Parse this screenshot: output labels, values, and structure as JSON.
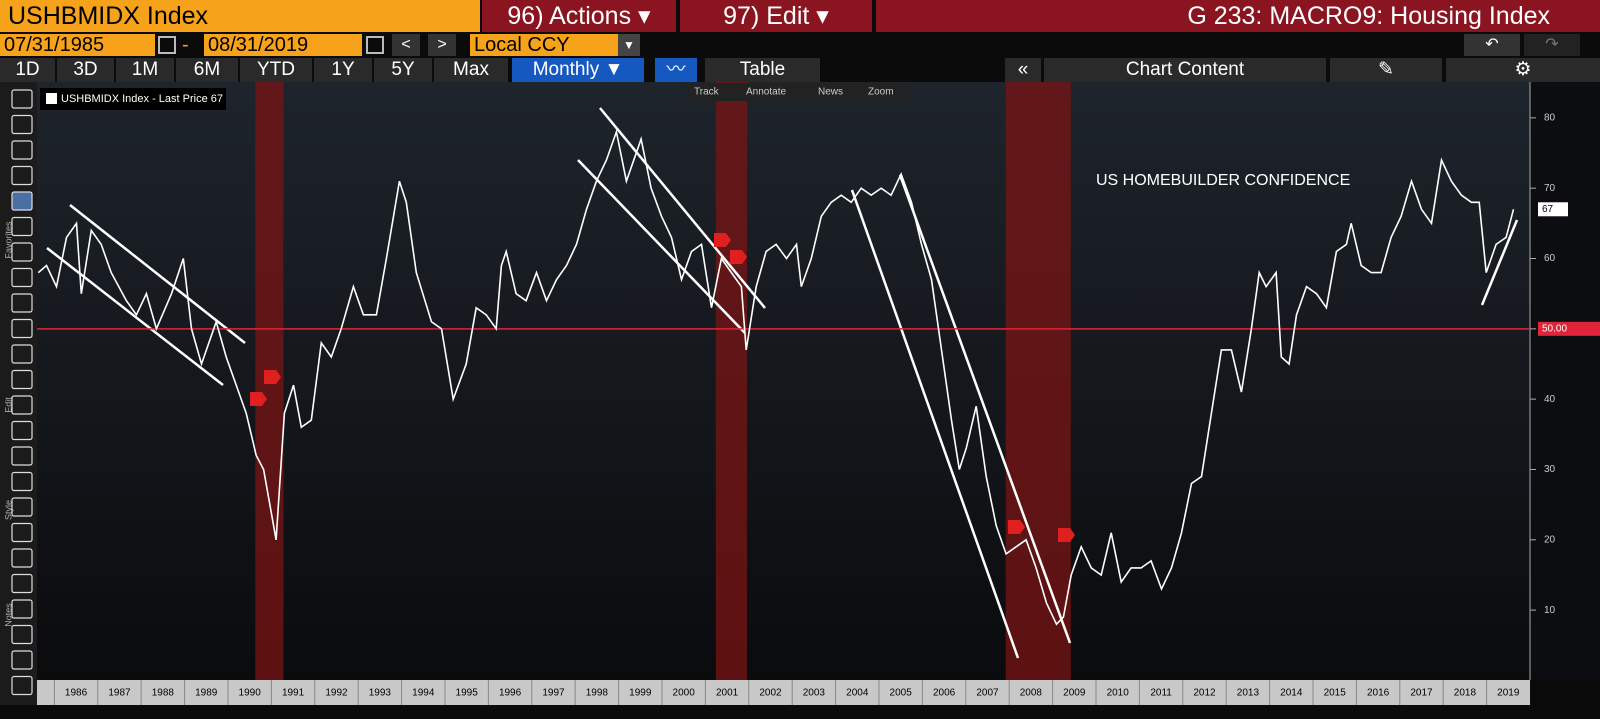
{
  "header": {
    "ticker": "USHBMIDX Index",
    "actions": "96) Actions",
    "edit": "97) Edit",
    "page_title": "G 233: MACRO9: Housing Index"
  },
  "controls": {
    "start_date": "07/31/1985",
    "end_date": "08/31/2019",
    "currency": "Local CCY",
    "periods": [
      "1D",
      "3D",
      "1M",
      "6M",
      "YTD",
      "1Y",
      "5Y",
      "Max"
    ],
    "frequency": "Monthly",
    "table": "Table",
    "chart_content": "Chart Content"
  },
  "chart_tools": [
    "Track",
    "Annotate",
    "News",
    "Zoom"
  ],
  "side_labels": [
    "Favorites",
    "Edit",
    "Style",
    "Notes"
  ],
  "chart_data": {
    "type": "line",
    "annotation": "US HOMEBUILDER CONFIDENCE",
    "x": [
      1985.63,
      1985.82,
      1986.05,
      1986.28,
      1986.51,
      1986.62,
      1986.85,
      1987.08,
      1987.31,
      1987.66,
      1987.89,
      1988.12,
      1988.35,
      1988.7,
      1988.97,
      1989.16,
      1989.39,
      1989.73,
      1989.96,
      1990.19,
      1990.42,
      1990.65,
      1990.82,
      1991.11,
      1991.3,
      1991.51,
      1991.69,
      1991.92,
      1992.15,
      1992.38,
      1992.61,
      1992.89,
      1993.12,
      1993.42,
      1993.65,
      1993.95,
      1994.11,
      1994.34,
      1994.69,
      1994.92,
      1995.19,
      1995.49,
      1995.72,
      1995.95,
      1996.18,
      1996.3,
      1996.41,
      1996.64,
      1996.87,
      1997.11,
      1997.34,
      1997.57,
      1997.8,
      1998.03,
      1998.26,
      1998.49,
      1998.72,
      1998.95,
      1999.18,
      1999.52,
      1999.75,
      1999.99,
      2000.22,
      2000.45,
      2000.68,
      2000.91,
      2001.14,
      2001.37,
      2001.6,
      2001.83,
      2001.94,
      2002.17,
      2002.4,
      2002.63,
      2002.87,
      2003.1,
      2003.21,
      2003.44,
      2003.67,
      2003.9,
      2004.13,
      2004.36,
      2004.59,
      2004.82,
      2005.05,
      2005.28,
      2005.51,
      2005.75,
      2005.98,
      2006.21,
      2006.44,
      2006.67,
      2006.85,
      2007.01,
      2007.24,
      2007.47,
      2007.7,
      2007.93,
      2008.16,
      2008.39,
      2008.62,
      2008.86,
      2009.09,
      2009.25,
      2009.43,
      2009.66,
      2009.89,
      2010.12,
      2010.35,
      2010.58,
      2010.81,
      2011.04,
      2011.27,
      2011.51,
      2011.74,
      2011.97,
      2012.2,
      2012.43,
      2012.66,
      2012.89,
      2013.12,
      2013.35,
      2013.58,
      2013.76,
      2013.92,
      2014.15,
      2014.27,
      2014.45,
      2014.62,
      2014.85,
      2015.08,
      2015.31,
      2015.54,
      2015.77,
      2015.88,
      2016.11,
      2016.34,
      2016.57,
      2016.8,
      2017.03,
      2017.27,
      2017.5,
      2017.73,
      2017.96,
      2018.19,
      2018.42,
      2018.65,
      2018.83,
      2018.99,
      2019.22,
      2019.45,
      2019.62
    ],
    "series": [
      {
        "name": "USHBMIDX Index - Last Price 67",
        "color": "#ffffff",
        "values": [
          58,
          59,
          56,
          63,
          65,
          55,
          64,
          62,
          58,
          54,
          52,
          55,
          50,
          55,
          60,
          50,
          45,
          51,
          46,
          42,
          38,
          32,
          30,
          20,
          38,
          42,
          36,
          37,
          48,
          46,
          50,
          56,
          52,
          52,
          60,
          71,
          68,
          58,
          51,
          50,
          40,
          45,
          53,
          52,
          50,
          59,
          61,
          55,
          54,
          58,
          54,
          57,
          59,
          62,
          67,
          71,
          74,
          78,
          71,
          77,
          70,
          66,
          63,
          57,
          61,
          62,
          53,
          60,
          58,
          56,
          47,
          56,
          61,
          62,
          60,
          62,
          56,
          60,
          66,
          68,
          69,
          68,
          70,
          69,
          70,
          69,
          72,
          68,
          62,
          57,
          47,
          37,
          30,
          33,
          39,
          29,
          22,
          18,
          19,
          20,
          16,
          11,
          8,
          9,
          15,
          19,
          16,
          15,
          21,
          14,
          16,
          16,
          17,
          13,
          16,
          21,
          28,
          29,
          38,
          47,
          47,
          41,
          50,
          58,
          56,
          58,
          46,
          45,
          52,
          56,
          55,
          53,
          61,
          62,
          65,
          59,
          58,
          58,
          63,
          66,
          71,
          67,
          65,
          74,
          71,
          69,
          68,
          68,
          58,
          62,
          63,
          67
        ]
      }
    ],
    "last_price": 67,
    "reference_line": {
      "value": 50,
      "label": "50.00",
      "color": "#e0243a"
    },
    "recessions": [
      {
        "start": 1990.63,
        "end": 1991.28
      },
      {
        "start": 2001.24,
        "end": 2001.96
      },
      {
        "start": 2007.92,
        "end": 2009.42
      }
    ],
    "xlim": [
      1985.6,
      2020.0
    ],
    "xticks": [
      1986,
      1987,
      1988,
      1989,
      1990,
      1991,
      1992,
      1993,
      1994,
      1995,
      1996,
      1997,
      1998,
      1999,
      2000,
      2001,
      2002,
      2003,
      2004,
      2005,
      2006,
      2007,
      2008,
      2009,
      2010,
      2011,
      2012,
      2013,
      2014,
      2015,
      2016,
      2017,
      2018,
      2019
    ],
    "ylim": [
      1.2,
      85.1
    ],
    "yticks": [
      10,
      20,
      30,
      40,
      50,
      60,
      70,
      80
    ]
  }
}
